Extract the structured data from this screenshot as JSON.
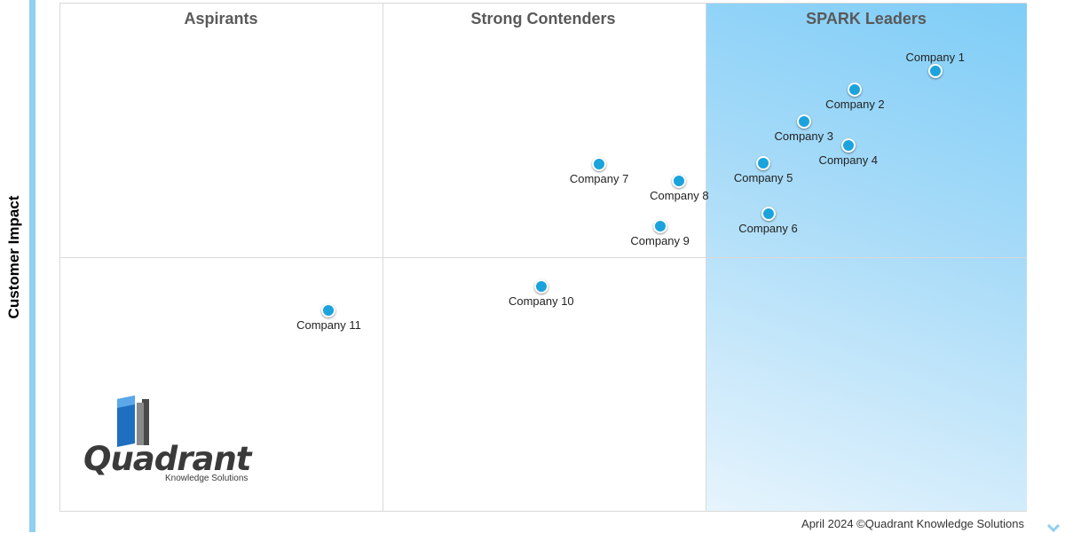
{
  "chart_data": {
    "type": "scatter",
    "title": "",
    "xlabel": "",
    "ylabel": "Customer Impact",
    "quadrants": [
      "Aspirants",
      "Strong Contenders",
      "SPARK Leaders"
    ],
    "points": [
      {
        "label": "Company 1",
        "x": 90.6,
        "y": 86.8
      },
      {
        "label": "Company 2",
        "x": 82.3,
        "y": 83.1
      },
      {
        "label": "Company 3",
        "x": 77.0,
        "y": 76.8
      },
      {
        "label": "Company 4",
        "x": 81.6,
        "y": 72.1
      },
      {
        "label": "Company 5",
        "x": 72.8,
        "y": 68.5
      },
      {
        "label": "Company 6",
        "x": 73.3,
        "y": 58.6
      },
      {
        "label": "Company 7",
        "x": 55.8,
        "y": 68.3
      },
      {
        "label": "Company 8",
        "x": 64.1,
        "y": 65.0
      },
      {
        "label": "Company 9",
        "x": 62.1,
        "y": 56.1
      },
      {
        "label": "Company 10",
        "x": 49.8,
        "y": 44.3
      },
      {
        "label": "Company 11",
        "x": 27.8,
        "y": 39.5
      }
    ],
    "xlim": [
      0,
      100
    ],
    "ylim": [
      0,
      100
    ],
    "grid": true
  },
  "logo": {
    "word": "Quadrant",
    "sub": "Knowledge Solutions"
  },
  "footer": "April 2024 ©Quadrant Knowledge Solutions",
  "colors": {
    "point": "#1aa3dc",
    "leader_zone": "#7fcdf7",
    "side_bar": "#8fd0f2"
  }
}
